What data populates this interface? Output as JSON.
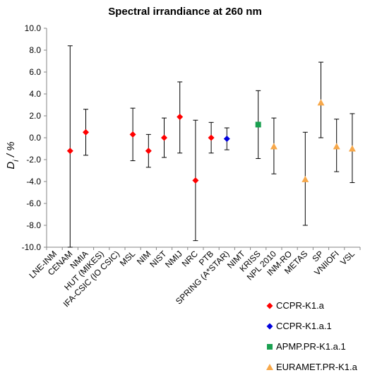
{
  "chart_data": {
    "type": "scatter",
    "title": "Spectral irrandiance at 260 nm",
    "ylabel": "Di / %",
    "ylabel_main": "D",
    "ylabel_sub": "i",
    "ylabel_rest": " / %",
    "ylim": [
      -10,
      10
    ],
    "ytick_step": 2,
    "ytick_labels": [
      "-10.0",
      "-8.0",
      "-6.0",
      "-4.0",
      "-2.0",
      "0.0",
      "2.0",
      "4.0",
      "6.0",
      "8.0",
      "10.0"
    ],
    "grid": false,
    "legend_position": "bottom-right",
    "categories": [
      "LNE-INM",
      "CENAM",
      "NMIA",
      "HUT (MIKES)",
      "IFA-CSIC (IO CSIC)",
      "MSL",
      "NIM",
      "NIST",
      "NMIJ",
      "NRC",
      "PTB",
      "SPRING (A*STAR)",
      "NIMT",
      "KRISS",
      "NPL 2010",
      "INM-RO",
      "METAS",
      "SP",
      "VNIIOFI",
      "VSL"
    ],
    "series": [
      {
        "name": "CCPR-K1.a",
        "marker": "diamond",
        "color": "#ff0000",
        "points": [
          {
            "category": "CENAM",
            "y": -1.2,
            "err_low": -10.0,
            "err_high": 8.4
          },
          {
            "category": "NMIA",
            "y": 0.5,
            "err_low": -1.6,
            "err_high": 2.6
          },
          {
            "category": "MSL",
            "y": 0.3,
            "err_low": -2.1,
            "err_high": 2.7
          },
          {
            "category": "NIM",
            "y": -1.2,
            "err_low": -2.7,
            "err_high": 0.3
          },
          {
            "category": "NIST",
            "y": 0.0,
            "err_low": -1.8,
            "err_high": 1.8
          },
          {
            "category": "NMIJ",
            "y": 1.9,
            "err_low": -1.4,
            "err_high": 5.1
          },
          {
            "category": "NRC",
            "y": -3.9,
            "err_low": -9.4,
            "err_high": 1.6
          },
          {
            "category": "PTB",
            "y": 0.0,
            "err_low": -1.4,
            "err_high": 1.4
          }
        ]
      },
      {
        "name": "CCPR-K1.a.1",
        "marker": "diamond",
        "color": "#0000dd",
        "points": [
          {
            "category": "SPRING (A*STAR)",
            "y": -0.1,
            "err_low": -1.1,
            "err_high": 0.9
          }
        ]
      },
      {
        "name": "APMP.PR-K1.a.1",
        "marker": "square",
        "color": "#1aa050",
        "points": [
          {
            "category": "KRISS",
            "y": 1.2,
            "err_low": -1.9,
            "err_high": 4.3
          }
        ]
      },
      {
        "name": "EURAMET.PR-K1.a",
        "marker": "triangle",
        "color": "#f7a84a",
        "points": [
          {
            "category": "NPL 2010",
            "y": -0.8,
            "err_low": -3.3,
            "err_high": 1.8
          },
          {
            "category": "METAS",
            "y": -3.8,
            "err_low": -8.0,
            "err_high": 0.5
          },
          {
            "category": "SP",
            "y": 3.2,
            "err_low": 0.0,
            "err_high": 6.9
          },
          {
            "category": "VNIIOFI",
            "y": -0.8,
            "err_low": -3.1,
            "err_high": 1.7
          },
          {
            "category": "VSL",
            "y": -1.0,
            "err_low": -4.1,
            "err_high": 2.2
          }
        ]
      }
    ]
  }
}
